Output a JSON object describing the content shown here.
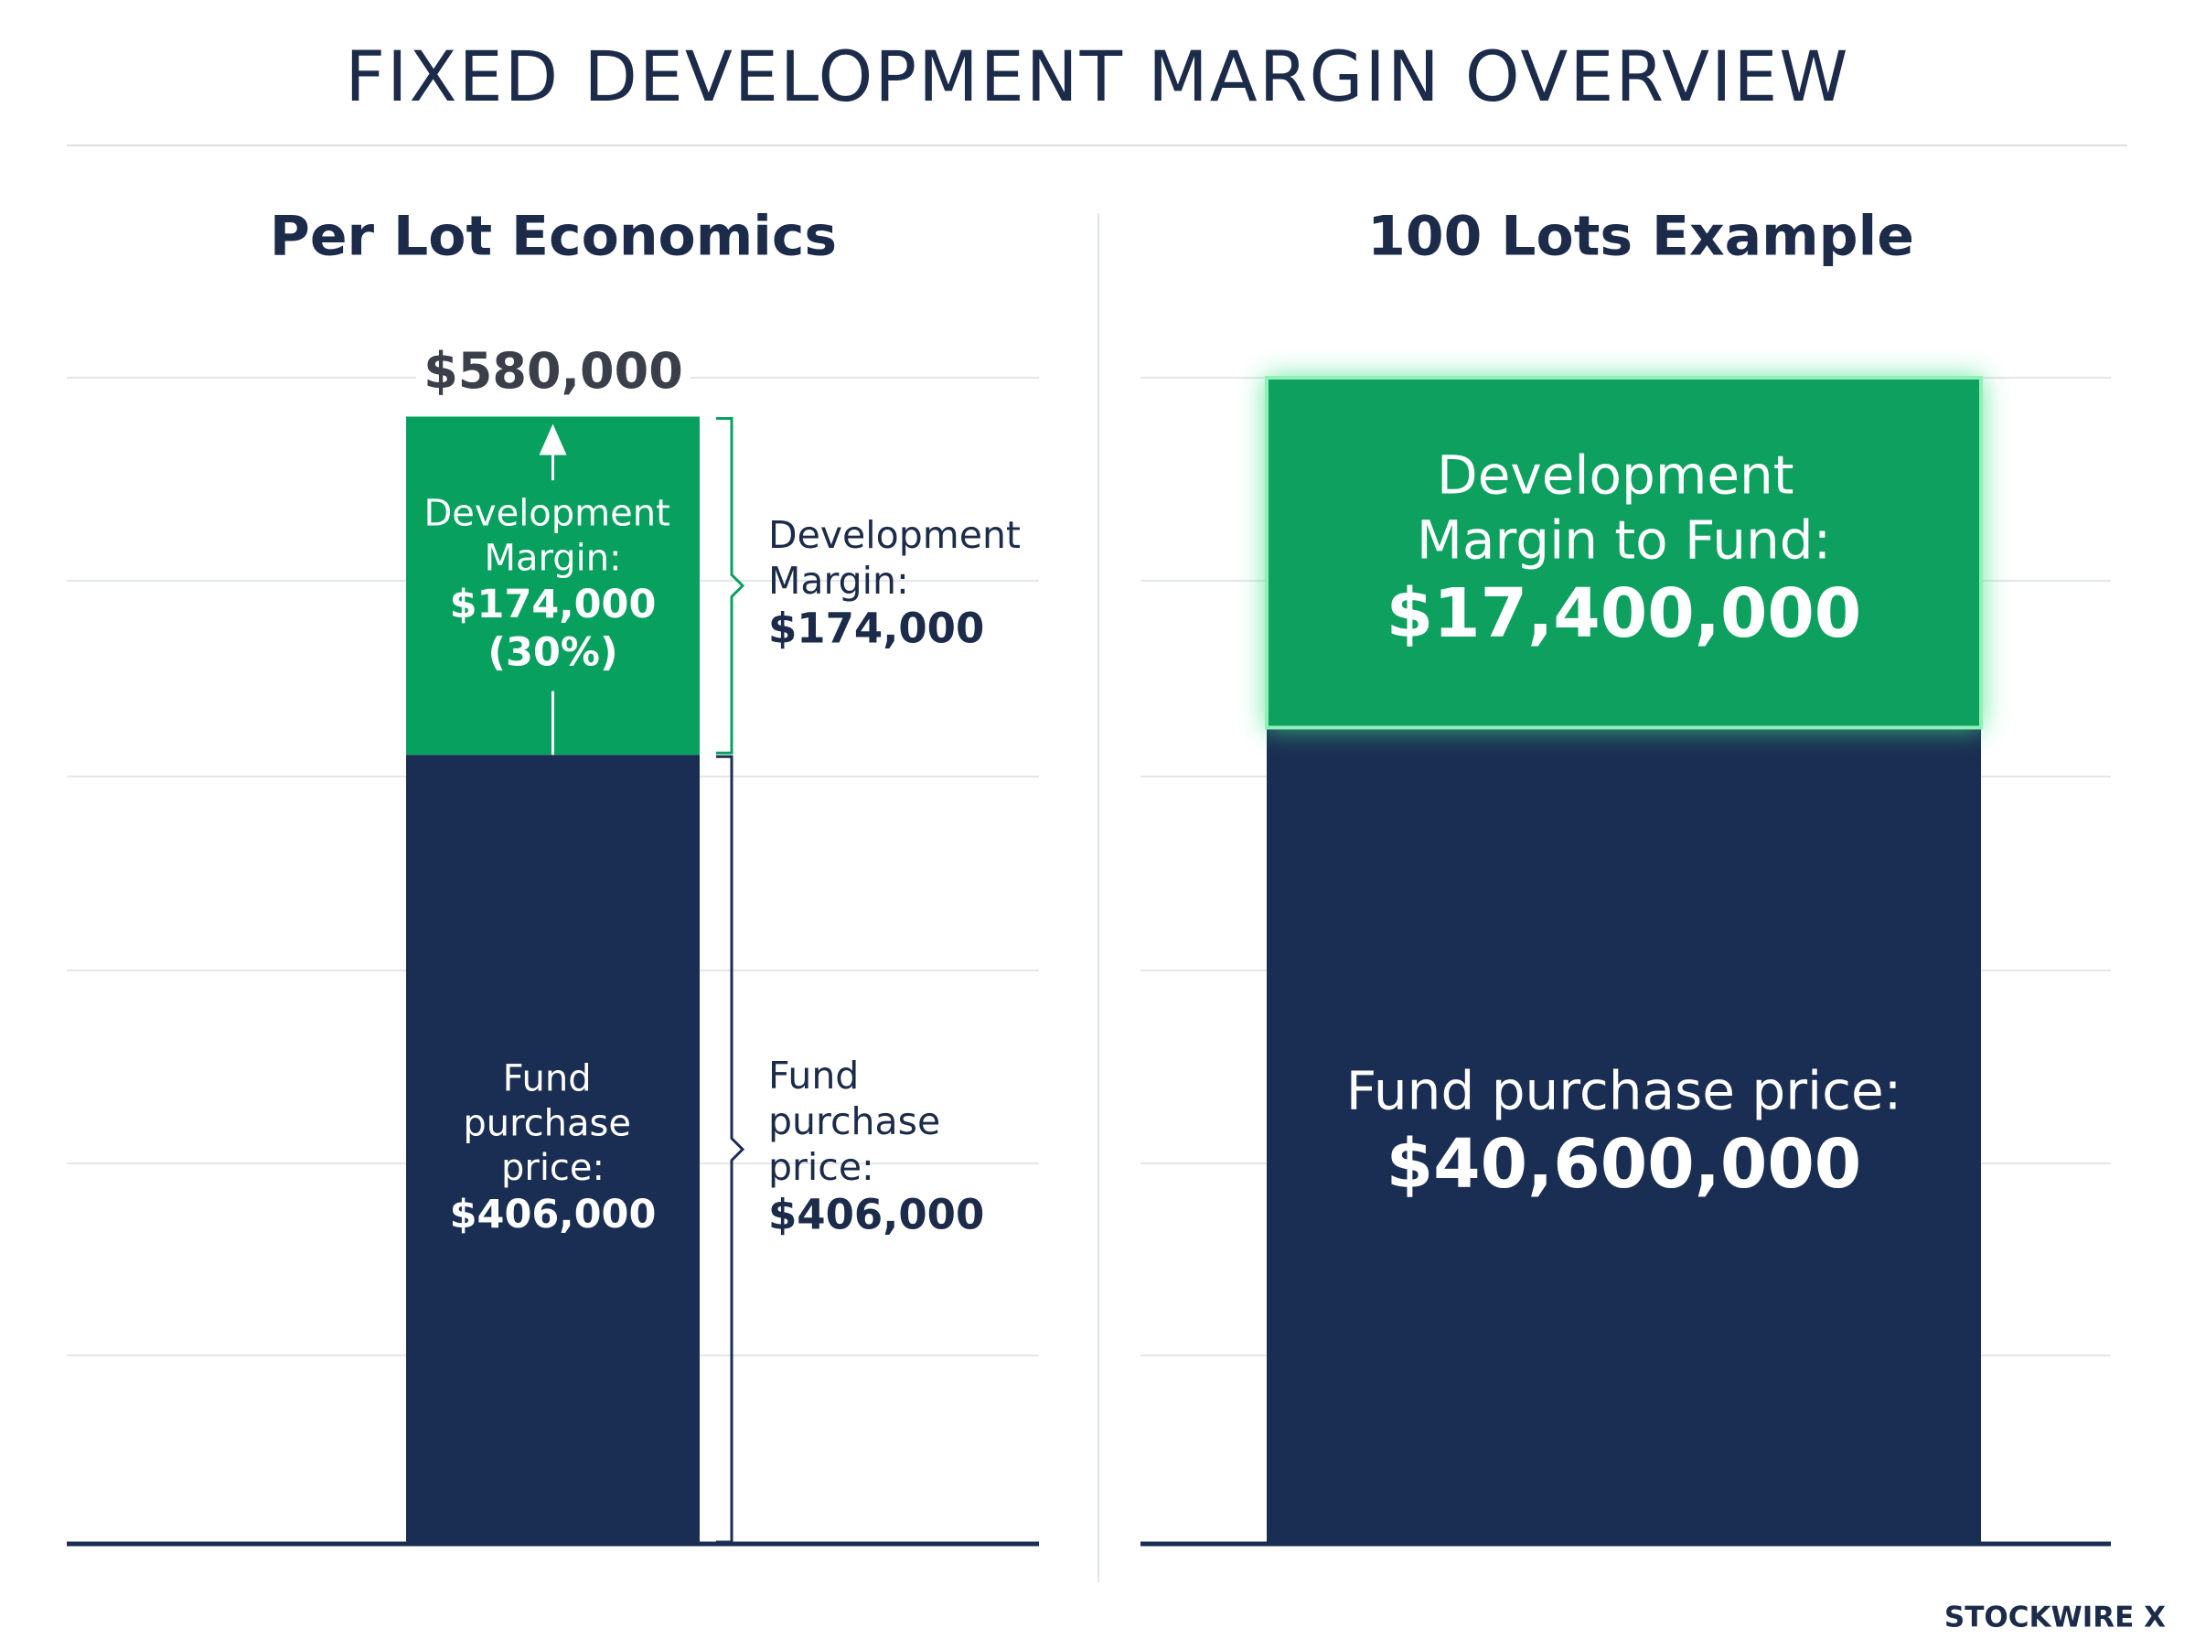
{
  "title": "FIXED DEVELOPMENT MARGIN OVERVIEW",
  "footer": "STOCKWIRE X",
  "chart_data": [
    {
      "type": "bar",
      "stacked": true,
      "title": "Per Lot Economics",
      "ylim": [
        0,
        600000
      ],
      "total": 580000,
      "total_label": "$580,000",
      "series": [
        {
          "name": "Fund purchase price:",
          "color": "#1a2d52",
          "values": [
            406000
          ],
          "value_labels": [
            "$406,000"
          ]
        },
        {
          "name": "Development Margin:",
          "color": "#07a05f",
          "values": [
            174000
          ],
          "value_labels": [
            "$174,000"
          ],
          "share_labels": [
            "(30%)"
          ]
        }
      ]
    },
    {
      "type": "bar",
      "stacked": true,
      "title": "100 Lots Example",
      "ylim": [
        0,
        58000000
      ],
      "series": [
        {
          "name": "Fund purchase price:",
          "color": "#1a2d52",
          "values": [
            40600000
          ],
          "value_labels": [
            "$40,600,000"
          ]
        },
        {
          "name": "Development Margin to Fund:",
          "color": "#07a05f",
          "values": [
            17400000
          ],
          "value_labels": [
            "$17,400,000"
          ]
        }
      ]
    }
  ]
}
